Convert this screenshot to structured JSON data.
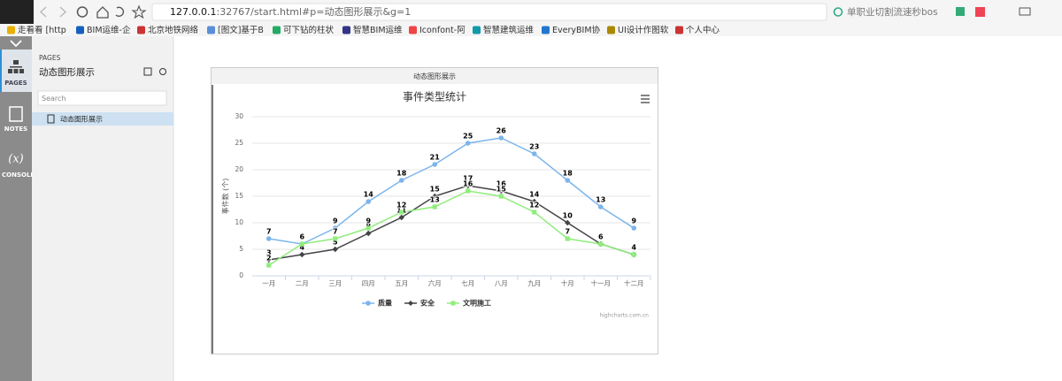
{
  "browser": {
    "url_host": "127.0.0.1",
    "url_rest": ":32767/start.html#p=动态图形展示&g=1",
    "search": "单职业切割流速秒bos",
    "bookmarks": [
      "走看看 [http",
      "BIM运维-企",
      "北京地铁网络",
      "[图文]基于B",
      "可下钻的柱状",
      "智慧BIM运维",
      "Iconfont-阿",
      "智慧建筑运维",
      "EveryBIM协",
      "UI设计作图软",
      "个人中心"
    ]
  },
  "sidebar": {
    "tabs": [
      "PAGES",
      "NOTES",
      "CONSOLE"
    ],
    "section_label": "PAGES",
    "title": "动态图形展示",
    "search_placeholder": "Search",
    "pages": [
      "动态图形展示"
    ]
  },
  "frame_title": "动态图形展示",
  "chart_data": {
    "type": "line",
    "title": "事件类型统计",
    "y_label": "事件数 (个)",
    "categories": [
      "一月",
      "二月",
      "三月",
      "四月",
      "五月",
      "六月",
      "七月",
      "八月",
      "九月",
      "十月",
      "十一月",
      "十二月"
    ],
    "series": [
      {
        "name": "质量",
        "color": "#7cb5ec",
        "marker": "circle",
        "values": [
          7,
          6,
          9,
          14,
          18,
          21,
          25,
          26,
          23,
          18,
          13,
          9
        ]
      },
      {
        "name": "安全",
        "color": "#434348",
        "marker": "diamond",
        "values": [
          3,
          4,
          5,
          8,
          11,
          15,
          17,
          16,
          14,
          10,
          6,
          4
        ]
      },
      {
        "name": "文明施工",
        "color": "#90ed7d",
        "marker": "square",
        "values": [
          2,
          6,
          7,
          9,
          12,
          13,
          16,
          15,
          12,
          7,
          6,
          4
        ]
      }
    ],
    "ylim": [
      0,
      30
    ],
    "yticks": [
      0,
      5,
      10,
      15,
      20,
      25,
      30
    ],
    "grid": true,
    "credit": "highcharts.com.cn"
  }
}
